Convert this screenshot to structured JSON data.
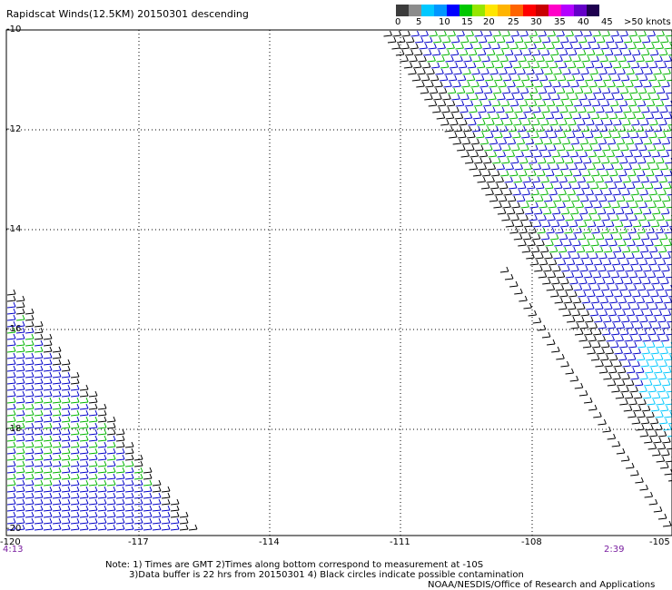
{
  "title": "Rapidscat Winds(12.5KM) 20150301 descending",
  "legend": {
    "labels": [
      "0",
      "5",
      "10",
      "15",
      "20",
      "25",
      "30",
      "35",
      "40",
      "45",
      ">50 knots"
    ],
    "colors": [
      "#3c3c3c",
      "#8c8c8c",
      "#00c8ff",
      "#0096ff",
      "#0000ff",
      "#00c800",
      "#96e600",
      "#ffe600",
      "#ffb400",
      "#ff6400",
      "#ff0000",
      "#c80000",
      "#ff00c8",
      "#b400ff",
      "#6400c8",
      "#1e0050"
    ]
  },
  "axes": {
    "lat_labels": [
      "-10",
      "-12",
      "-14",
      "-16",
      "-18",
      "-20"
    ],
    "lon_labels": [
      "-120",
      "-117",
      "-114",
      "-111",
      "-108",
      "-105"
    ]
  },
  "times": {
    "left": "4:13",
    "right": "2:39"
  },
  "note": {
    "line1": "Note: 1) Times are GMT 2)Times along bottom correspond to measurement at -10S",
    "line2": "3)Data buffer is 22 hrs from 20150301 4) Black circles indicate possible contamination",
    "line3": "NOAA/NESDIS/Office of Research and Applications"
  },
  "colors": {
    "wind_green": "#00b400",
    "wind_blue": "#0000c8",
    "wind_black": "#000000",
    "wind_cyan": "#00c8ff",
    "time_purple": "#7a1fa0"
  }
}
